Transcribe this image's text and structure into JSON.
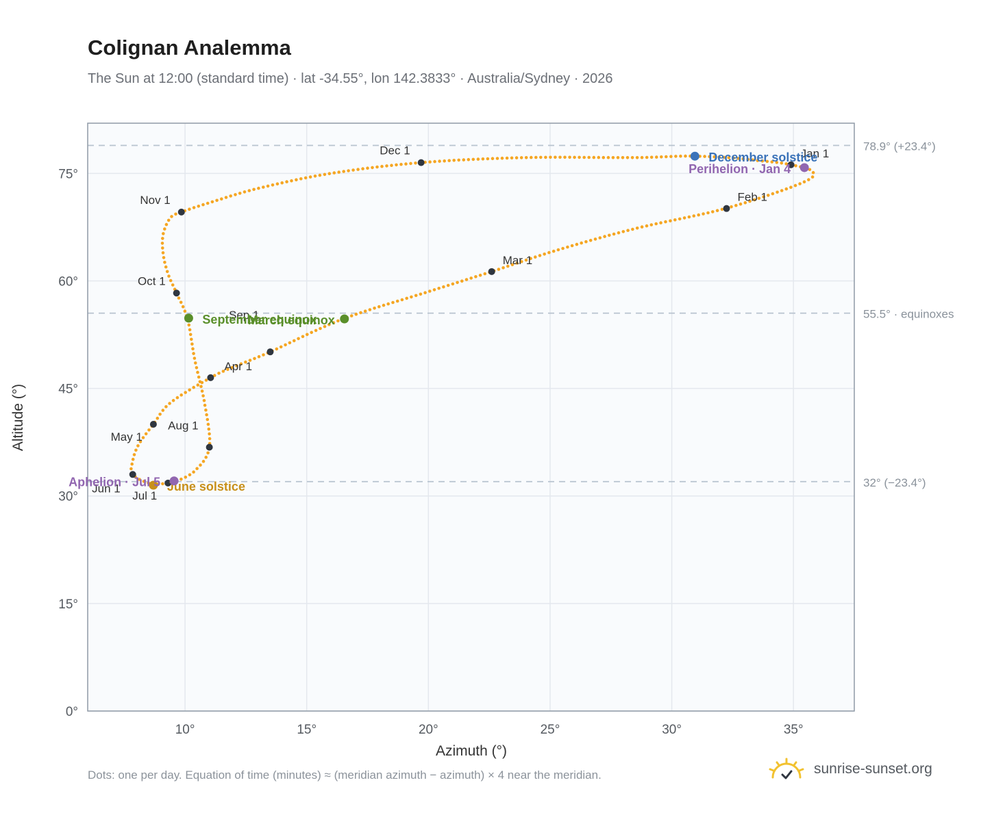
{
  "header": {
    "title": "Colignan Analemma",
    "subtitle": "The Sun at 12:00 (standard time) · lat -34.55°, lon 142.3833° · Australia/Sydney · 2026"
  },
  "footer": {
    "note": "Dots: one per day. Equation of time (minutes) ≈ (meridian azimuth − azimuth) × 4 near the meridian.",
    "brand": "sunrise-sunset.org"
  },
  "colors": {
    "curve": "#f5a623",
    "month_marker": "#2f3640",
    "equinox": "#5a8f2a",
    "december_solstice": "#3b73b9",
    "june_solstice": "#c8901a",
    "apsis": "#9166b0",
    "reference_line": "#b8c3cf",
    "grid": "#e4e8ee",
    "plot_bg": "#f9fbfd"
  },
  "chart_data": {
    "type": "scatter",
    "xlabel": "Azimuth (°)",
    "ylabel": "Altitude (°)",
    "xlim": [
      6,
      37.5
    ],
    "ylim": [
      0,
      82
    ],
    "x_ticks": [
      10,
      15,
      20,
      25,
      30,
      35
    ],
    "x_tick_labels": [
      "10°",
      "15°",
      "20°",
      "25°",
      "30°",
      "35°"
    ],
    "y_ticks": [
      0,
      15,
      30,
      45,
      60,
      75
    ],
    "y_tick_labels": [
      "0°",
      "15°",
      "30°",
      "45°",
      "60°",
      "75°"
    ],
    "grid": true,
    "reference_lines": [
      {
        "y": 78.9,
        "label": "78.9° (+23.4°)"
      },
      {
        "y": 55.5,
        "label": "55.5° · equinoxes"
      },
      {
        "y": 32,
        "label": "32° (−23.4°)"
      }
    ],
    "curve_points": [
      [
        34.9,
        76.2
      ],
      [
        35.8,
        75.2
      ],
      [
        35.3,
        73.6
      ],
      [
        32.2,
        70.1
      ],
      [
        28.5,
        67.3
      ],
      [
        25.3,
        64.3
      ],
      [
        22.6,
        61.3
      ],
      [
        20.0,
        58.5
      ],
      [
        16.5,
        54.7
      ],
      [
        13.5,
        50.1
      ],
      [
        12.0,
        48.0
      ],
      [
        11.05,
        46.5
      ],
      [
        9.4,
        43.0
      ],
      [
        8.7,
        40.0
      ],
      [
        8.1,
        37.2
      ],
      [
        7.85,
        34.9
      ],
      [
        7.85,
        33.0
      ],
      [
        8.6,
        31.7
      ],
      [
        9.3,
        31.8
      ],
      [
        9.6,
        32.0
      ],
      [
        10.4,
        33.5
      ],
      [
        11.0,
        36.8
      ],
      [
        10.8,
        43.0
      ],
      [
        10.4,
        49.0
      ],
      [
        10.1,
        54.7
      ],
      [
        9.65,
        58.3
      ],
      [
        9.3,
        61.0
      ],
      [
        9.1,
        63.8
      ],
      [
        9.1,
        66.5
      ],
      [
        9.4,
        68.8
      ],
      [
        9.85,
        69.6
      ],
      [
        11.0,
        70.9
      ],
      [
        13.0,
        72.9
      ],
      [
        16.0,
        75.0
      ],
      [
        19.7,
        76.5
      ],
      [
        24.0,
        77.2
      ],
      [
        28.5,
        77.2
      ],
      [
        30.95,
        77.4
      ],
      [
        33.5,
        76.8
      ],
      [
        34.9,
        76.2
      ]
    ],
    "month_markers": [
      {
        "label": "Jan 1",
        "x": 34.9,
        "y": 76.2
      },
      {
        "label": "Feb 1",
        "x": 32.25,
        "y": 70.1
      },
      {
        "label": "Mar 1",
        "x": 22.6,
        "y": 61.3
      },
      {
        "label": "Apr 1",
        "x": 11.05,
        "y": 46.5
      },
      {
        "label": "May 1",
        "x": 8.7,
        "y": 40.0
      },
      {
        "label": "Jun 1",
        "x": 7.85,
        "y": 33.0
      },
      {
        "label": "Jul 1",
        "x": 9.3,
        "y": 31.8
      },
      {
        "label": "Aug 1",
        "x": 11.0,
        "y": 36.8
      },
      {
        "label": "Sep 1",
        "x": 13.5,
        "y": 50.1
      },
      {
        "label": "Oct 1",
        "x": 9.65,
        "y": 58.3
      },
      {
        "label": "Nov 1",
        "x": 9.85,
        "y": 69.6
      },
      {
        "label": "Dec 1",
        "x": 19.7,
        "y": 76.5
      }
    ],
    "events": [
      {
        "label": "December solstice",
        "x": 30.95,
        "y": 77.4,
        "color": "#3b73b9"
      },
      {
        "label": "Perihelion · Jan 4",
        "x": 35.45,
        "y": 75.8,
        "color": "#9166b0"
      },
      {
        "label": "March equinox",
        "x": 16.55,
        "y": 54.7,
        "color": "#5a8f2a"
      },
      {
        "label": "September equinox",
        "x": 10.15,
        "y": 54.8,
        "color": "#5a8f2a"
      },
      {
        "label": "June solstice",
        "x": 8.7,
        "y": 31.5,
        "color": "#c8901a"
      },
      {
        "label": "Aphelion · Jul 5",
        "x": 9.55,
        "y": 32.1,
        "color": "#9166b0"
      }
    ]
  }
}
